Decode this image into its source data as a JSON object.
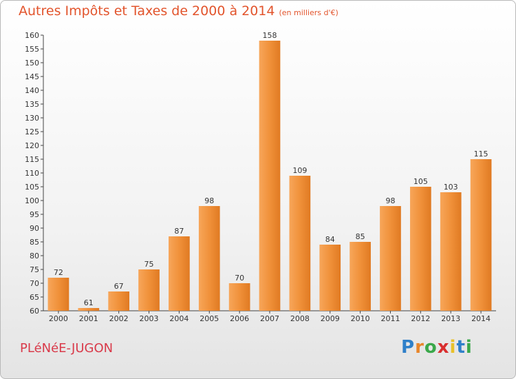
{
  "title": "Autres Impôts et Taxes de 2000 à 2014",
  "subtitle": "(en milliers d'€)",
  "town": "PLéNéE-JUGON",
  "logo": {
    "letters": [
      "P",
      "r",
      "o",
      "x",
      "i",
      "t",
      "i"
    ],
    "colors": [
      "#2f80c9",
      "#e8862a",
      "#3aa84a",
      "#d92f2f",
      "#e8c12a",
      "#2f80c9",
      "#3aa84a"
    ]
  },
  "chart_data": {
    "type": "bar",
    "categories": [
      "2000",
      "2001",
      "2002",
      "2003",
      "2004",
      "2005",
      "2006",
      "2007",
      "2008",
      "2009",
      "2010",
      "2011",
      "2012",
      "2013",
      "2014"
    ],
    "values": [
      72,
      61,
      67,
      75,
      87,
      98,
      70,
      158,
      109,
      84,
      85,
      98,
      105,
      103,
      115
    ],
    "ylim": [
      60,
      160
    ],
    "ytick_step": 5,
    "bar_color": "#f0913a",
    "grid": false
  }
}
